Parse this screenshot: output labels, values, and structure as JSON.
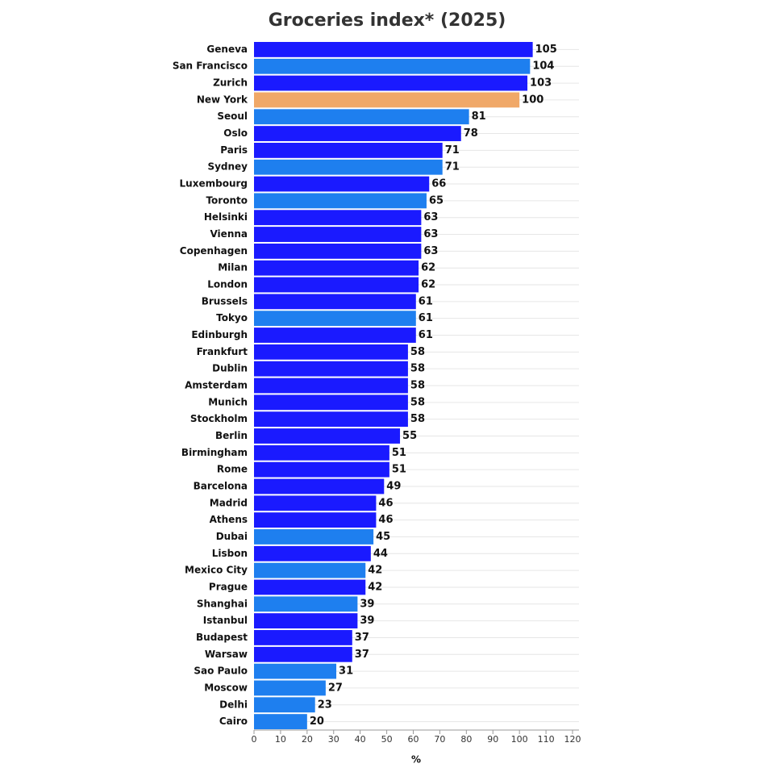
{
  "chart_data": {
    "type": "barh",
    "title": "Groceries index* (2025)",
    "xlabel": "%",
    "categories": [
      "Geneva",
      "San Francisco",
      "Zurich",
      "New York",
      "Seoul",
      "Oslo",
      "Paris",
      "Sydney",
      "Luxembourg",
      "Toronto",
      "Helsinki",
      "Vienna",
      "Copenhagen",
      "Milan",
      "London",
      "Brussels",
      "Tokyo",
      "Edinburgh",
      "Frankfurt",
      "Dublin",
      "Amsterdam",
      "Munich",
      "Stockholm",
      "Berlin",
      "Birmingham",
      "Rome",
      "Barcelona",
      "Madrid",
      "Athens",
      "Dubai",
      "Lisbon",
      "Mexico City",
      "Prague",
      "Shanghai",
      "Istanbul",
      "Budapest",
      "Warsaw",
      "Sao Paulo",
      "Moscow",
      "Delhi",
      "Cairo"
    ],
    "values": [
      105,
      104,
      103,
      100,
      81,
      78,
      71,
      71,
      66,
      65,
      63,
      63,
      63,
      62,
      62,
      61,
      61,
      61,
      58,
      58,
      58,
      58,
      58,
      55,
      51,
      51,
      49,
      46,
      46,
      45,
      44,
      42,
      42,
      39,
      39,
      37,
      37,
      31,
      27,
      23,
      20
    ],
    "colors": [
      "#1a1aff",
      "#1e7fef",
      "#1a1aff",
      "#f0a868",
      "#1e7fef",
      "#1a1aff",
      "#1a1aff",
      "#1e7fef",
      "#1a1aff",
      "#1e7fef",
      "#1a1aff",
      "#1a1aff",
      "#1a1aff",
      "#1a1aff",
      "#1a1aff",
      "#1a1aff",
      "#1e7fef",
      "#1a1aff",
      "#1a1aff",
      "#1a1aff",
      "#1a1aff",
      "#1a1aff",
      "#1a1aff",
      "#1a1aff",
      "#1a1aff",
      "#1a1aff",
      "#1a1aff",
      "#1a1aff",
      "#1a1aff",
      "#1e7fef",
      "#1a1aff",
      "#1e7fef",
      "#1a1aff",
      "#1e7fef",
      "#1a1aff",
      "#1a1aff",
      "#1a1aff",
      "#1e7fef",
      "#1e7fef",
      "#1e7fef",
      "#1e7fef"
    ],
    "xlim": [
      0,
      120
    ],
    "xticks": [
      0,
      10,
      20,
      30,
      40,
      50,
      60,
      70,
      80,
      90,
      100,
      110,
      120
    ],
    "grid": true
  }
}
